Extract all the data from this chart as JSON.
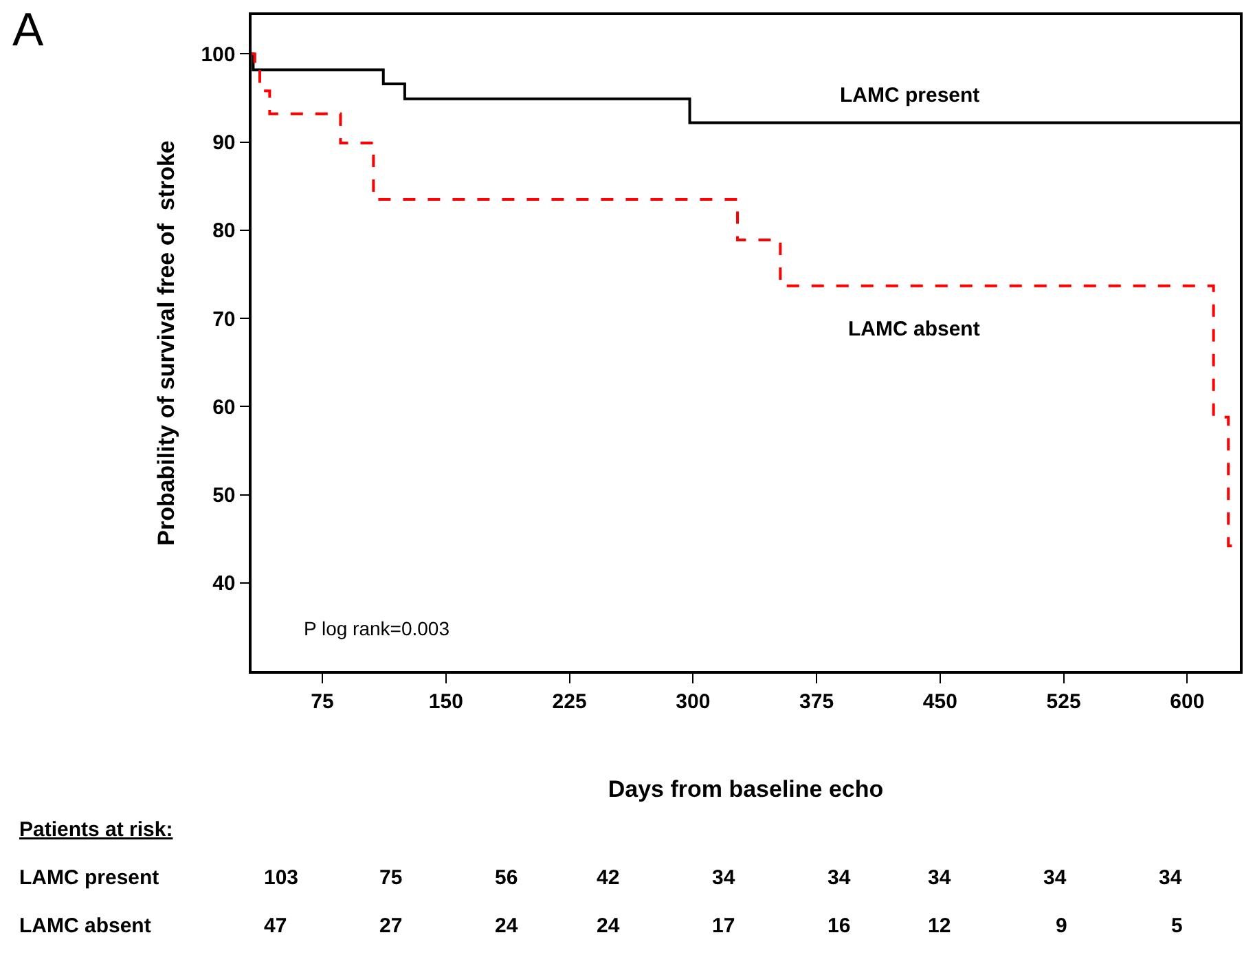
{
  "chart_data": {
    "type": "step",
    "xlabel": "Days from baseline echo",
    "ylabel": "Probability of survival free of  stroke",
    "series": [
      {
        "name": "LAMC present",
        "color": "#000000",
        "line_style": "solid",
        "x": [
          32,
          33,
          112,
          125,
          298,
          632
        ],
        "values": [
          100,
          98.2,
          96.6,
          94.9,
          92.2,
          92.2
        ]
      },
      {
        "name": "LAMC absent",
        "color": "#ff0000",
        "line_style": "dashed",
        "x": [
          32,
          34,
          37,
          43,
          86,
          106,
          327,
          353,
          616,
          625,
          632
        ],
        "values": [
          100,
          98,
          95.8,
          93.2,
          89.9,
          83.5,
          78.9,
          73.7,
          58.8,
          44.2,
          44.2
        ]
      }
    ],
    "xlim": [
      32,
      632
    ],
    "xticks": [
      75,
      150,
      225,
      300,
      375,
      450,
      525,
      600
    ],
    "ylim": [
      30,
      104.4
    ],
    "yticks": [
      40,
      50,
      60,
      70,
      80,
      90,
      100
    ],
    "legend": false,
    "annotations": [
      "A",
      "P log rank=0.003",
      "Patients at risk:",
      "LAMC present",
      "103",
      "75",
      "56",
      "42",
      "34",
      "34",
      "34",
      "34",
      "34",
      "LAMC absent",
      "47",
      "27",
      "24",
      "24",
      "17",
      "16",
      "12",
      "9",
      "5"
    ]
  }
}
